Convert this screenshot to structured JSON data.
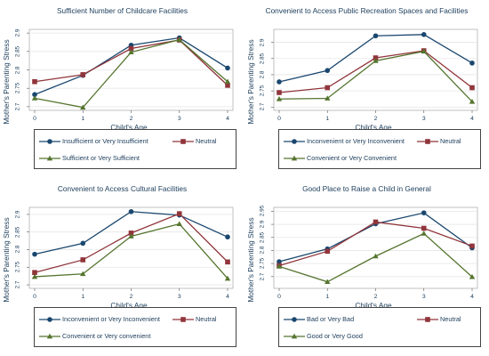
{
  "colors": {
    "background": "#ffffff",
    "text": "#1a3c5a",
    "series": [
      "#1a476f",
      "#90353b",
      "#55752f"
    ]
  },
  "markers": [
    "circle",
    "square",
    "triangle"
  ],
  "chart_data": [
    {
      "type": "line",
      "title": "Sufficient Number of Childcare Facilities",
      "xlabel": "Child's Age",
      "ylabel": "Mother's Parenting Stress",
      "x": [
        0,
        1,
        2,
        3,
        4
      ],
      "x_tick_labels": [
        "0",
        "1",
        "2",
        "3",
        "4"
      ],
      "y_ticks": [
        2.7,
        2.75,
        2.8,
        2.85,
        2.9
      ],
      "y_tick_labels": [
        "2.7",
        "2.75",
        "2.8",
        "2.85",
        "2.9"
      ],
      "ylim": [
        2.69,
        2.91
      ],
      "grid": "horizontal",
      "legend_position": "bottom",
      "series": [
        {
          "name": "Insufficient or Very Insufficient",
          "values": [
            2.733,
            2.785,
            2.867,
            2.887,
            2.805
          ]
        },
        {
          "name": "Neutral",
          "values": [
            2.768,
            2.787,
            2.858,
            2.881,
            2.758
          ]
        },
        {
          "name": "Sufficient or Very Sufficient",
          "values": [
            2.723,
            2.698,
            2.848,
            2.882,
            2.768
          ]
        }
      ]
    },
    {
      "type": "line",
      "title": "Convenient to Access Public Recreation Spaces and Facilities",
      "xlabel": "Child's Age",
      "ylabel": "Mother's Parenting Stress",
      "x": [
        0,
        1,
        2,
        3,
        4
      ],
      "x_tick_labels": [
        "0",
        "1",
        "2",
        "3",
        "4"
      ],
      "y_ticks": [
        2.7,
        2.75,
        2.8,
        2.85,
        2.9
      ],
      "y_tick_labels": [
        "2.7",
        "2.75",
        "2.8",
        "2.85",
        "2.9"
      ],
      "ylim": [
        2.69,
        2.94
      ],
      "grid": "horizontal",
      "legend_position": "bottom",
      "series": [
        {
          "name": "Inconvenient or Very Inconvenient",
          "values": [
            2.778,
            2.813,
            2.92,
            2.924,
            2.836
          ]
        },
        {
          "name": "Neutral",
          "values": [
            2.745,
            2.76,
            2.852,
            2.874,
            2.76
          ]
        },
        {
          "name": "Convenient or Very Convenient",
          "values": [
            2.725,
            2.727,
            2.843,
            2.872,
            2.717
          ]
        }
      ]
    },
    {
      "type": "line",
      "title": "Convenient to Access Cultural Facilities",
      "xlabel": "Child's Age",
      "ylabel": "Mother's Parenting Stress",
      "x": [
        0,
        1,
        2,
        3,
        4
      ],
      "x_tick_labels": [
        "0",
        "1",
        "2",
        "3",
        "4"
      ],
      "y_ticks": [
        2.7,
        2.75,
        2.8,
        2.85,
        2.9
      ],
      "y_tick_labels": [
        "2.7",
        "2.75",
        "2.8",
        "2.85",
        "2.9"
      ],
      "ylim": [
        2.69,
        2.92
      ],
      "grid": "horizontal",
      "legend_position": "bottom",
      "series": [
        {
          "name": "Inconvenient or Very Inconvenient",
          "values": [
            2.787,
            2.818,
            2.908,
            2.898,
            2.836
          ]
        },
        {
          "name": "Neutral",
          "values": [
            2.735,
            2.771,
            2.847,
            2.902,
            2.765
          ]
        },
        {
          "name": "Convenient or Very convenient",
          "values": [
            2.723,
            2.731,
            2.838,
            2.873,
            2.718
          ]
        }
      ]
    },
    {
      "type": "line",
      "title": "Good Place to Raise a Child in General",
      "xlabel": "Child's Age",
      "ylabel": "Mother's Parenting Stress",
      "x": [
        0,
        1,
        2,
        3,
        4
      ],
      "x_tick_labels": [
        "0",
        "1",
        "2",
        "3",
        "4"
      ],
      "y_ticks": [
        2.7,
        2.75,
        2.8,
        2.85,
        2.9,
        2.95
      ],
      "y_tick_labels": [
        "2.7",
        "2.75",
        "2.8",
        "2.85",
        "2.9",
        "2.95"
      ],
      "ylim": [
        2.655,
        2.965
      ],
      "grid": "horizontal",
      "legend_position": "bottom",
      "series": [
        {
          "name": "Bad or Very Bad",
          "values": [
            2.757,
            2.806,
            2.902,
            2.944,
            2.81
          ]
        },
        {
          "name": "Neutral",
          "values": [
            2.742,
            2.797,
            2.909,
            2.885,
            2.817
          ]
        },
        {
          "name": "Good or Very Good",
          "values": [
            2.739,
            2.68,
            2.778,
            2.865,
            2.699
          ]
        }
      ]
    }
  ]
}
